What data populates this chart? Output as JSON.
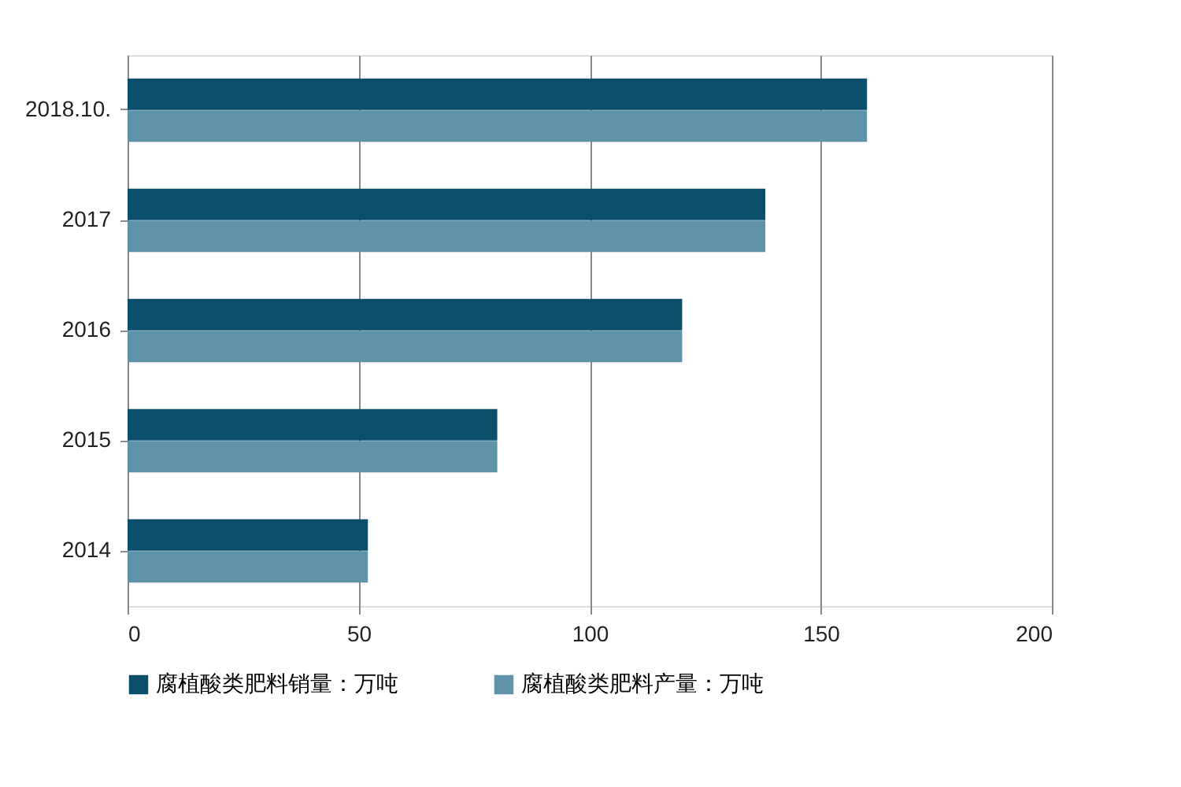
{
  "chart_data": {
    "type": "bar",
    "orientation": "horizontal",
    "categories": [
      "2018.10.",
      "2017",
      "2016",
      "2015",
      "2014"
    ],
    "series": [
      {
        "name": "腐植酸类肥料销量：万吨",
        "color": "#0b4f6c",
        "values": [
          160,
          138,
          120,
          80,
          52
        ]
      },
      {
        "name": "腐植酸类肥料产量：万吨",
        "color": "#5e93aa",
        "values": [
          160,
          138,
          120,
          80,
          52
        ]
      }
    ],
    "xlim": [
      0,
      200
    ],
    "xticks": [
      0,
      50,
      100,
      150,
      200
    ],
    "grid": "x",
    "legend": "bottom"
  }
}
